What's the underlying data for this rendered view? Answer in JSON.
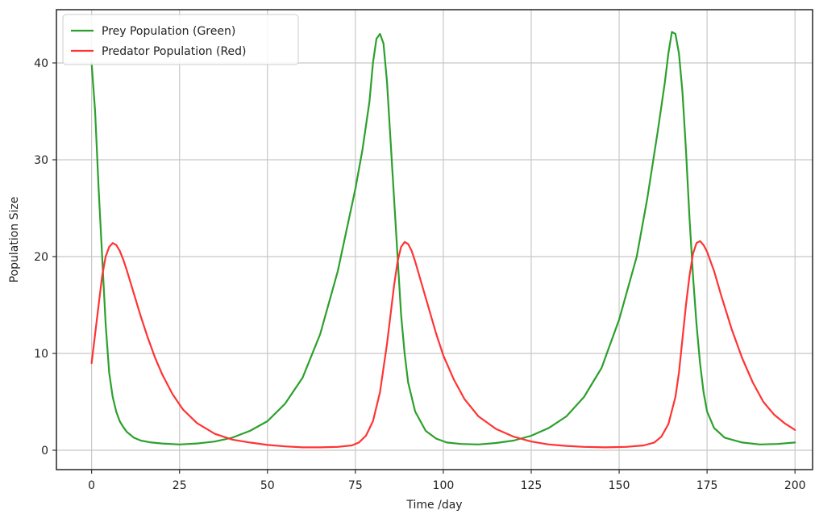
{
  "chart_data": {
    "type": "line",
    "title": "",
    "xlabel": "Time /day",
    "ylabel": "Population Size",
    "xlim": [
      -10,
      205
    ],
    "ylim": [
      -2,
      45.5
    ],
    "xticks": [
      0,
      25,
      50,
      75,
      100,
      125,
      150,
      175,
      200
    ],
    "yticks": [
      0,
      10,
      20,
      30,
      40
    ],
    "grid": true,
    "legend": {
      "placement": "top-left"
    },
    "series": [
      {
        "name": "Prey Population (Green)",
        "color": "#2ca02c",
        "points": [
          [
            0,
            40
          ],
          [
            1,
            35
          ],
          [
            2,
            27
          ],
          [
            3,
            20
          ],
          [
            4,
            13
          ],
          [
            5,
            8
          ],
          [
            6,
            5.5
          ],
          [
            7,
            4
          ],
          [
            8,
            3
          ],
          [
            9,
            2.4
          ],
          [
            10,
            1.9
          ],
          [
            12,
            1.3
          ],
          [
            14,
            1
          ],
          [
            17,
            0.8
          ],
          [
            20,
            0.7
          ],
          [
            25,
            0.6
          ],
          [
            30,
            0.7
          ],
          [
            35,
            0.9
          ],
          [
            40,
            1.3
          ],
          [
            45,
            2
          ],
          [
            50,
            3
          ],
          [
            55,
            4.8
          ],
          [
            60,
            7.5
          ],
          [
            65,
            12
          ],
          [
            70,
            18.5
          ],
          [
            75,
            27
          ],
          [
            77,
            31
          ],
          [
            79,
            36
          ],
          [
            80,
            40
          ],
          [
            81,
            42.5
          ],
          [
            82,
            43
          ],
          [
            83,
            42
          ],
          [
            84,
            38
          ],
          [
            85,
            32
          ],
          [
            86,
            26
          ],
          [
            87,
            20
          ],
          [
            88,
            14
          ],
          [
            89,
            10
          ],
          [
            90,
            7
          ],
          [
            92,
            4
          ],
          [
            95,
            2
          ],
          [
            98,
            1.2
          ],
          [
            101,
            0.8
          ],
          [
            105,
            0.65
          ],
          [
            110,
            0.6
          ],
          [
            115,
            0.75
          ],
          [
            120,
            1
          ],
          [
            125,
            1.5
          ],
          [
            130,
            2.3
          ],
          [
            135,
            3.5
          ],
          [
            140,
            5.5
          ],
          [
            145,
            8.5
          ],
          [
            150,
            13.5
          ],
          [
            155,
            20
          ],
          [
            158,
            26
          ],
          [
            161,
            33
          ],
          [
            163,
            38
          ],
          [
            164,
            41
          ],
          [
            165,
            43.2
          ],
          [
            166,
            43
          ],
          [
            167,
            41
          ],
          [
            168,
            37
          ],
          [
            169,
            31
          ],
          [
            170,
            24
          ],
          [
            171,
            18
          ],
          [
            172,
            13
          ],
          [
            173,
            9
          ],
          [
            174,
            6
          ],
          [
            175,
            4
          ],
          [
            177,
            2.3
          ],
          [
            180,
            1.3
          ],
          [
            185,
            0.8
          ],
          [
            190,
            0.6
          ],
          [
            195,
            0.65
          ],
          [
            200,
            0.8
          ]
        ]
      },
      {
        "name": "Predator Population (Red)",
        "color": "#ff3333",
        "points": [
          [
            0,
            9
          ],
          [
            1,
            12
          ],
          [
            2,
            15
          ],
          [
            3,
            18
          ],
          [
            4,
            20
          ],
          [
            5,
            21
          ],
          [
            6,
            21.4
          ],
          [
            7,
            21.2
          ],
          [
            8,
            20.6
          ],
          [
            9,
            19.7
          ],
          [
            10,
            18.6
          ],
          [
            12,
            16.2
          ],
          [
            14,
            13.8
          ],
          [
            16,
            11.6
          ],
          [
            18,
            9.6
          ],
          [
            20,
            7.9
          ],
          [
            23,
            5.8
          ],
          [
            26,
            4.2
          ],
          [
            30,
            2.8
          ],
          [
            35,
            1.7
          ],
          [
            40,
            1.1
          ],
          [
            45,
            0.8
          ],
          [
            50,
            0.55
          ],
          [
            55,
            0.4
          ],
          [
            60,
            0.3
          ],
          [
            65,
            0.3
          ],
          [
            70,
            0.35
          ],
          [
            74,
            0.5
          ],
          [
            76,
            0.8
          ],
          [
            78,
            1.5
          ],
          [
            80,
            3
          ],
          [
            82,
            6
          ],
          [
            84,
            11
          ],
          [
            85,
            14
          ],
          [
            86,
            17
          ],
          [
            87,
            19.5
          ],
          [
            88,
            21
          ],
          [
            89,
            21.5
          ],
          [
            90,
            21.3
          ],
          [
            91,
            20.6
          ],
          [
            92,
            19.5
          ],
          [
            94,
            17
          ],
          [
            96,
            14.5
          ],
          [
            98,
            12
          ],
          [
            100,
            9.8
          ],
          [
            103,
            7.3
          ],
          [
            106,
            5.3
          ],
          [
            110,
            3.5
          ],
          [
            115,
            2.2
          ],
          [
            120,
            1.4
          ],
          [
            125,
            0.9
          ],
          [
            130,
            0.6
          ],
          [
            135,
            0.45
          ],
          [
            140,
            0.35
          ],
          [
            146,
            0.3
          ],
          [
            152,
            0.35
          ],
          [
            157,
            0.5
          ],
          [
            160,
            0.8
          ],
          [
            162,
            1.4
          ],
          [
            164,
            2.7
          ],
          [
            166,
            5.5
          ],
          [
            167,
            8
          ],
          [
            168,
            11.5
          ],
          [
            169,
            15
          ],
          [
            170,
            18
          ],
          [
            171,
            20.3
          ],
          [
            172,
            21.4
          ],
          [
            173,
            21.6
          ],
          [
            174,
            21.2
          ],
          [
            175,
            20.5
          ],
          [
            177,
            18.5
          ],
          [
            179,
            16
          ],
          [
            182,
            12.5
          ],
          [
            185,
            9.5
          ],
          [
            188,
            7
          ],
          [
            191,
            5
          ],
          [
            194,
            3.7
          ],
          [
            197,
            2.8
          ],
          [
            200,
            2.1
          ]
        ]
      }
    ]
  }
}
